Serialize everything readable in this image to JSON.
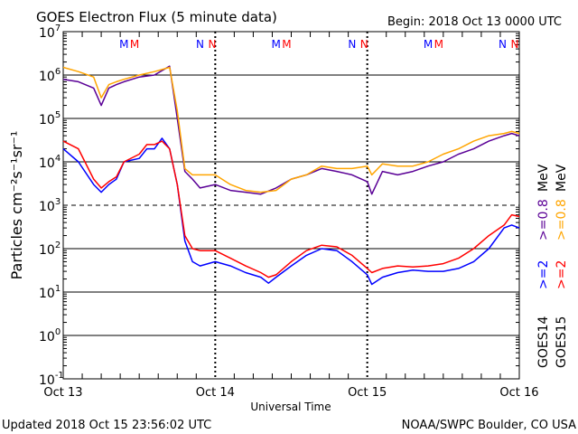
{
  "header": {
    "title": "GOES Electron Flux (5 minute data)",
    "begin": "Begin: 2018 Oct 13 0000 UTC"
  },
  "footer": {
    "updated": "Updated 2018 Oct 15 23:56:02 UTC",
    "credit": "NOAA/SWPC Boulder, CO USA"
  },
  "colors": {
    "goes14_2mev": "#0000ff",
    "goes15_2mev": "#ff0000",
    "goes14_08mev": "#5a0096",
    "goes15_08mev": "#ffa500",
    "marker_m_first": "#0000ff",
    "marker_m_second": "#ff0000",
    "marker_n_first": "#0000ff",
    "marker_n_second": "#ff0000"
  },
  "chart_data": {
    "type": "line",
    "ylabel": "Particles cm⁻²s⁻¹sr⁻¹",
    "xlabel": "Universal Time",
    "yscale": "log",
    "ylim": [
      0.1,
      10000000
    ],
    "y_ticks": [
      {
        "base": "10",
        "exp": "7",
        "value": 10000000
      },
      {
        "base": "10",
        "exp": "6",
        "value": 1000000
      },
      {
        "base": "10",
        "exp": "5",
        "value": 100000
      },
      {
        "base": "10",
        "exp": "4",
        "value": 10000
      },
      {
        "base": "10",
        "exp": "3",
        "value": 1000
      },
      {
        "base": "10",
        "exp": "2",
        "value": 100
      },
      {
        "base": "10",
        "exp": "1",
        "value": 10
      },
      {
        "base": "10",
        "exp": "0",
        "value": 1
      },
      {
        "base": "10",
        "exp": "-1",
        "value": 0.1
      }
    ],
    "x_ticks": [
      "Oct 13",
      "Oct 14",
      "Oct 15",
      "Oct 16"
    ],
    "x_unit": "days since 2018 Oct 13 0000 UTC",
    "xlim": [
      0,
      3
    ],
    "threshold_line": 1000,
    "markers": [
      {
        "label": "M",
        "satellite": "GOES14",
        "x": 0.4
      },
      {
        "label": "M",
        "satellite": "GOES15",
        "x": 0.47
      },
      {
        "label": "N",
        "satellite": "GOES14",
        "x": 0.9
      },
      {
        "label": "N",
        "satellite": "GOES15",
        "x": 0.98
      },
      {
        "label": "M",
        "satellite": "GOES14",
        "x": 1.4
      },
      {
        "label": "M",
        "satellite": "GOES15",
        "x": 1.47
      },
      {
        "label": "N",
        "satellite": "GOES14",
        "x": 1.9
      },
      {
        "label": "N",
        "satellite": "GOES15",
        "x": 1.98
      },
      {
        "label": "M",
        "satellite": "GOES14",
        "x": 2.4
      },
      {
        "label": "M",
        "satellite": "GOES15",
        "x": 2.47
      },
      {
        "label": "N",
        "satellite": "GOES14",
        "x": 2.89
      },
      {
        "label": "N",
        "satellite": "GOES15",
        "x": 2.97
      }
    ],
    "legend": {
      "satellites": [
        "GOES14",
        "GOES15"
      ],
      "goes14_2mev": ">=2",
      "goes15_2mev": ">=2",
      "goes14_08mev": ">=0.8",
      "goes15_08mev": ">=0.8",
      "unit": "MeV"
    },
    "series": [
      {
        "name": "GOES14 >=2 MeV",
        "color_key": "goes14_2mev",
        "x": [
          0,
          0.1,
          0.2,
          0.25,
          0.3,
          0.35,
          0.4,
          0.5,
          0.55,
          0.6,
          0.65,
          0.7,
          0.75,
          0.8,
          0.85,
          0.9,
          1.0,
          1.1,
          1.2,
          1.3,
          1.35,
          1.4,
          1.5,
          1.6,
          1.7,
          1.8,
          1.9,
          2.0,
          2.03,
          2.1,
          2.2,
          2.3,
          2.4,
          2.5,
          2.6,
          2.7,
          2.8,
          2.9,
          2.95,
          3.0
        ],
        "y": [
          20000,
          10000,
          3000,
          2000,
          3000,
          4000,
          10000,
          12000,
          20000,
          20000,
          35000,
          20000,
          3000,
          150,
          50,
          40,
          50,
          40,
          28,
          22,
          16,
          22,
          40,
          70,
          100,
          90,
          50,
          25,
          15,
          22,
          28,
          32,
          30,
          30,
          35,
          50,
          100,
          300,
          350,
          300
        ]
      },
      {
        "name": "GOES15 >=2 MeV",
        "color_key": "goes15_2mev",
        "x": [
          0,
          0.1,
          0.2,
          0.25,
          0.3,
          0.35,
          0.4,
          0.5,
          0.55,
          0.6,
          0.65,
          0.7,
          0.75,
          0.8,
          0.85,
          0.9,
          1.0,
          1.1,
          1.2,
          1.3,
          1.35,
          1.4,
          1.5,
          1.6,
          1.7,
          1.8,
          1.9,
          2.0,
          2.03,
          2.1,
          2.2,
          2.3,
          2.4,
          2.5,
          2.6,
          2.7,
          2.8,
          2.9,
          2.95,
          3.0
        ],
        "y": [
          30000,
          20000,
          4000,
          2500,
          3500,
          4500,
          10000,
          15000,
          25000,
          25000,
          30000,
          20000,
          3000,
          200,
          100,
          90,
          90,
          60,
          40,
          28,
          22,
          25,
          50,
          90,
          120,
          110,
          70,
          35,
          28,
          35,
          40,
          38,
          40,
          45,
          60,
          100,
          200,
          350,
          600,
          550
        ]
      },
      {
        "name": "GOES14 >=0.8 MeV",
        "color_key": "goes14_08mev",
        "x": [
          0,
          0.1,
          0.2,
          0.25,
          0.3,
          0.35,
          0.4,
          0.5,
          0.6,
          0.7,
          0.75,
          0.8,
          0.85,
          0.9,
          1.0,
          1.1,
          1.2,
          1.3,
          1.4,
          1.5,
          1.6,
          1.7,
          1.8,
          1.9,
          2.0,
          2.03,
          2.1,
          2.2,
          2.3,
          2.4,
          2.5,
          2.6,
          2.7,
          2.8,
          2.9,
          2.95,
          3.0
        ],
        "y": [
          800000,
          700000,
          500000,
          200000,
          500000,
          600000,
          700000,
          900000,
          1000000,
          1600000,
          100000,
          6000,
          4000,
          2500,
          3000,
          2200,
          2000,
          1800,
          2500,
          4000,
          5000,
          7000,
          6000,
          5000,
          3500,
          1800,
          6000,
          5000,
          6000,
          8000,
          10000,
          15000,
          20000,
          30000,
          40000,
          45000,
          40000
        ]
      },
      {
        "name": "GOES15 >=0.8 MeV",
        "color_key": "goes15_08mev",
        "x": [
          0,
          0.1,
          0.2,
          0.25,
          0.3,
          0.35,
          0.4,
          0.5,
          0.6,
          0.7,
          0.75,
          0.8,
          0.85,
          0.9,
          1.0,
          1.1,
          1.2,
          1.3,
          1.4,
          1.5,
          1.6,
          1.7,
          1.8,
          1.9,
          2.0,
          2.03,
          2.1,
          2.2,
          2.3,
          2.4,
          2.5,
          2.6,
          2.7,
          2.8,
          2.9,
          2.95,
          3.0
        ],
        "y": [
          1500000,
          1200000,
          900000,
          300000,
          600000,
          700000,
          800000,
          1000000,
          1200000,
          1500000,
          150000,
          7000,
          5000,
          5000,
          5000,
          3000,
          2200,
          2000,
          2200,
          4000,
          5000,
          8000,
          7000,
          7000,
          8000,
          5000,
          9000,
          8000,
          8000,
          10000,
          15000,
          20000,
          30000,
          40000,
          45000,
          50000,
          45000
        ]
      }
    ]
  }
}
